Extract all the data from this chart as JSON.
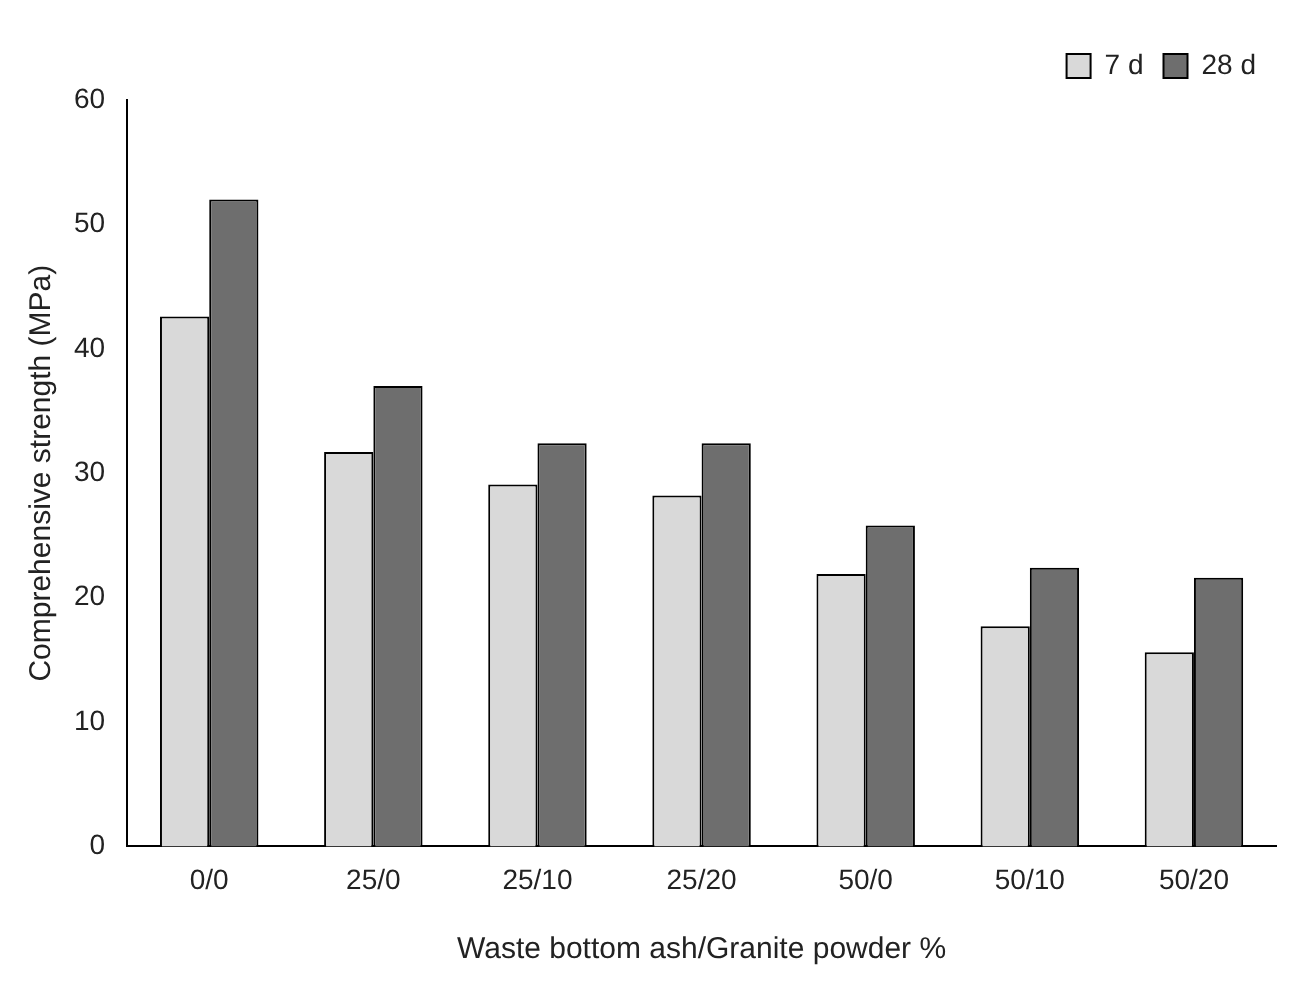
{
  "chart_data": {
    "type": "bar",
    "xlabel": "Waste bottom ash/Granite powder %",
    "ylabel": "Comprehensive strength (MPa)",
    "categories": [
      "0/0",
      "25/0",
      "25/10",
      "25/20",
      "50/0",
      "50/10",
      "50/20"
    ],
    "series": [
      {
        "name": "7 d",
        "color": "#d9d9d9",
        "values": [
          42.6,
          31.7,
          29.1,
          28.2,
          21.9,
          17.7,
          15.6
        ]
      },
      {
        "name": "28 d",
        "color": "#6e6e6e",
        "values": [
          52,
          37,
          32.4,
          32.4,
          25.8,
          22.4,
          21.6
        ]
      }
    ],
    "ylim": [
      0,
      60
    ],
    "yticks": [
      0,
      10,
      20,
      30,
      40,
      50,
      60
    ],
    "grid": false,
    "legend": "top right"
  }
}
